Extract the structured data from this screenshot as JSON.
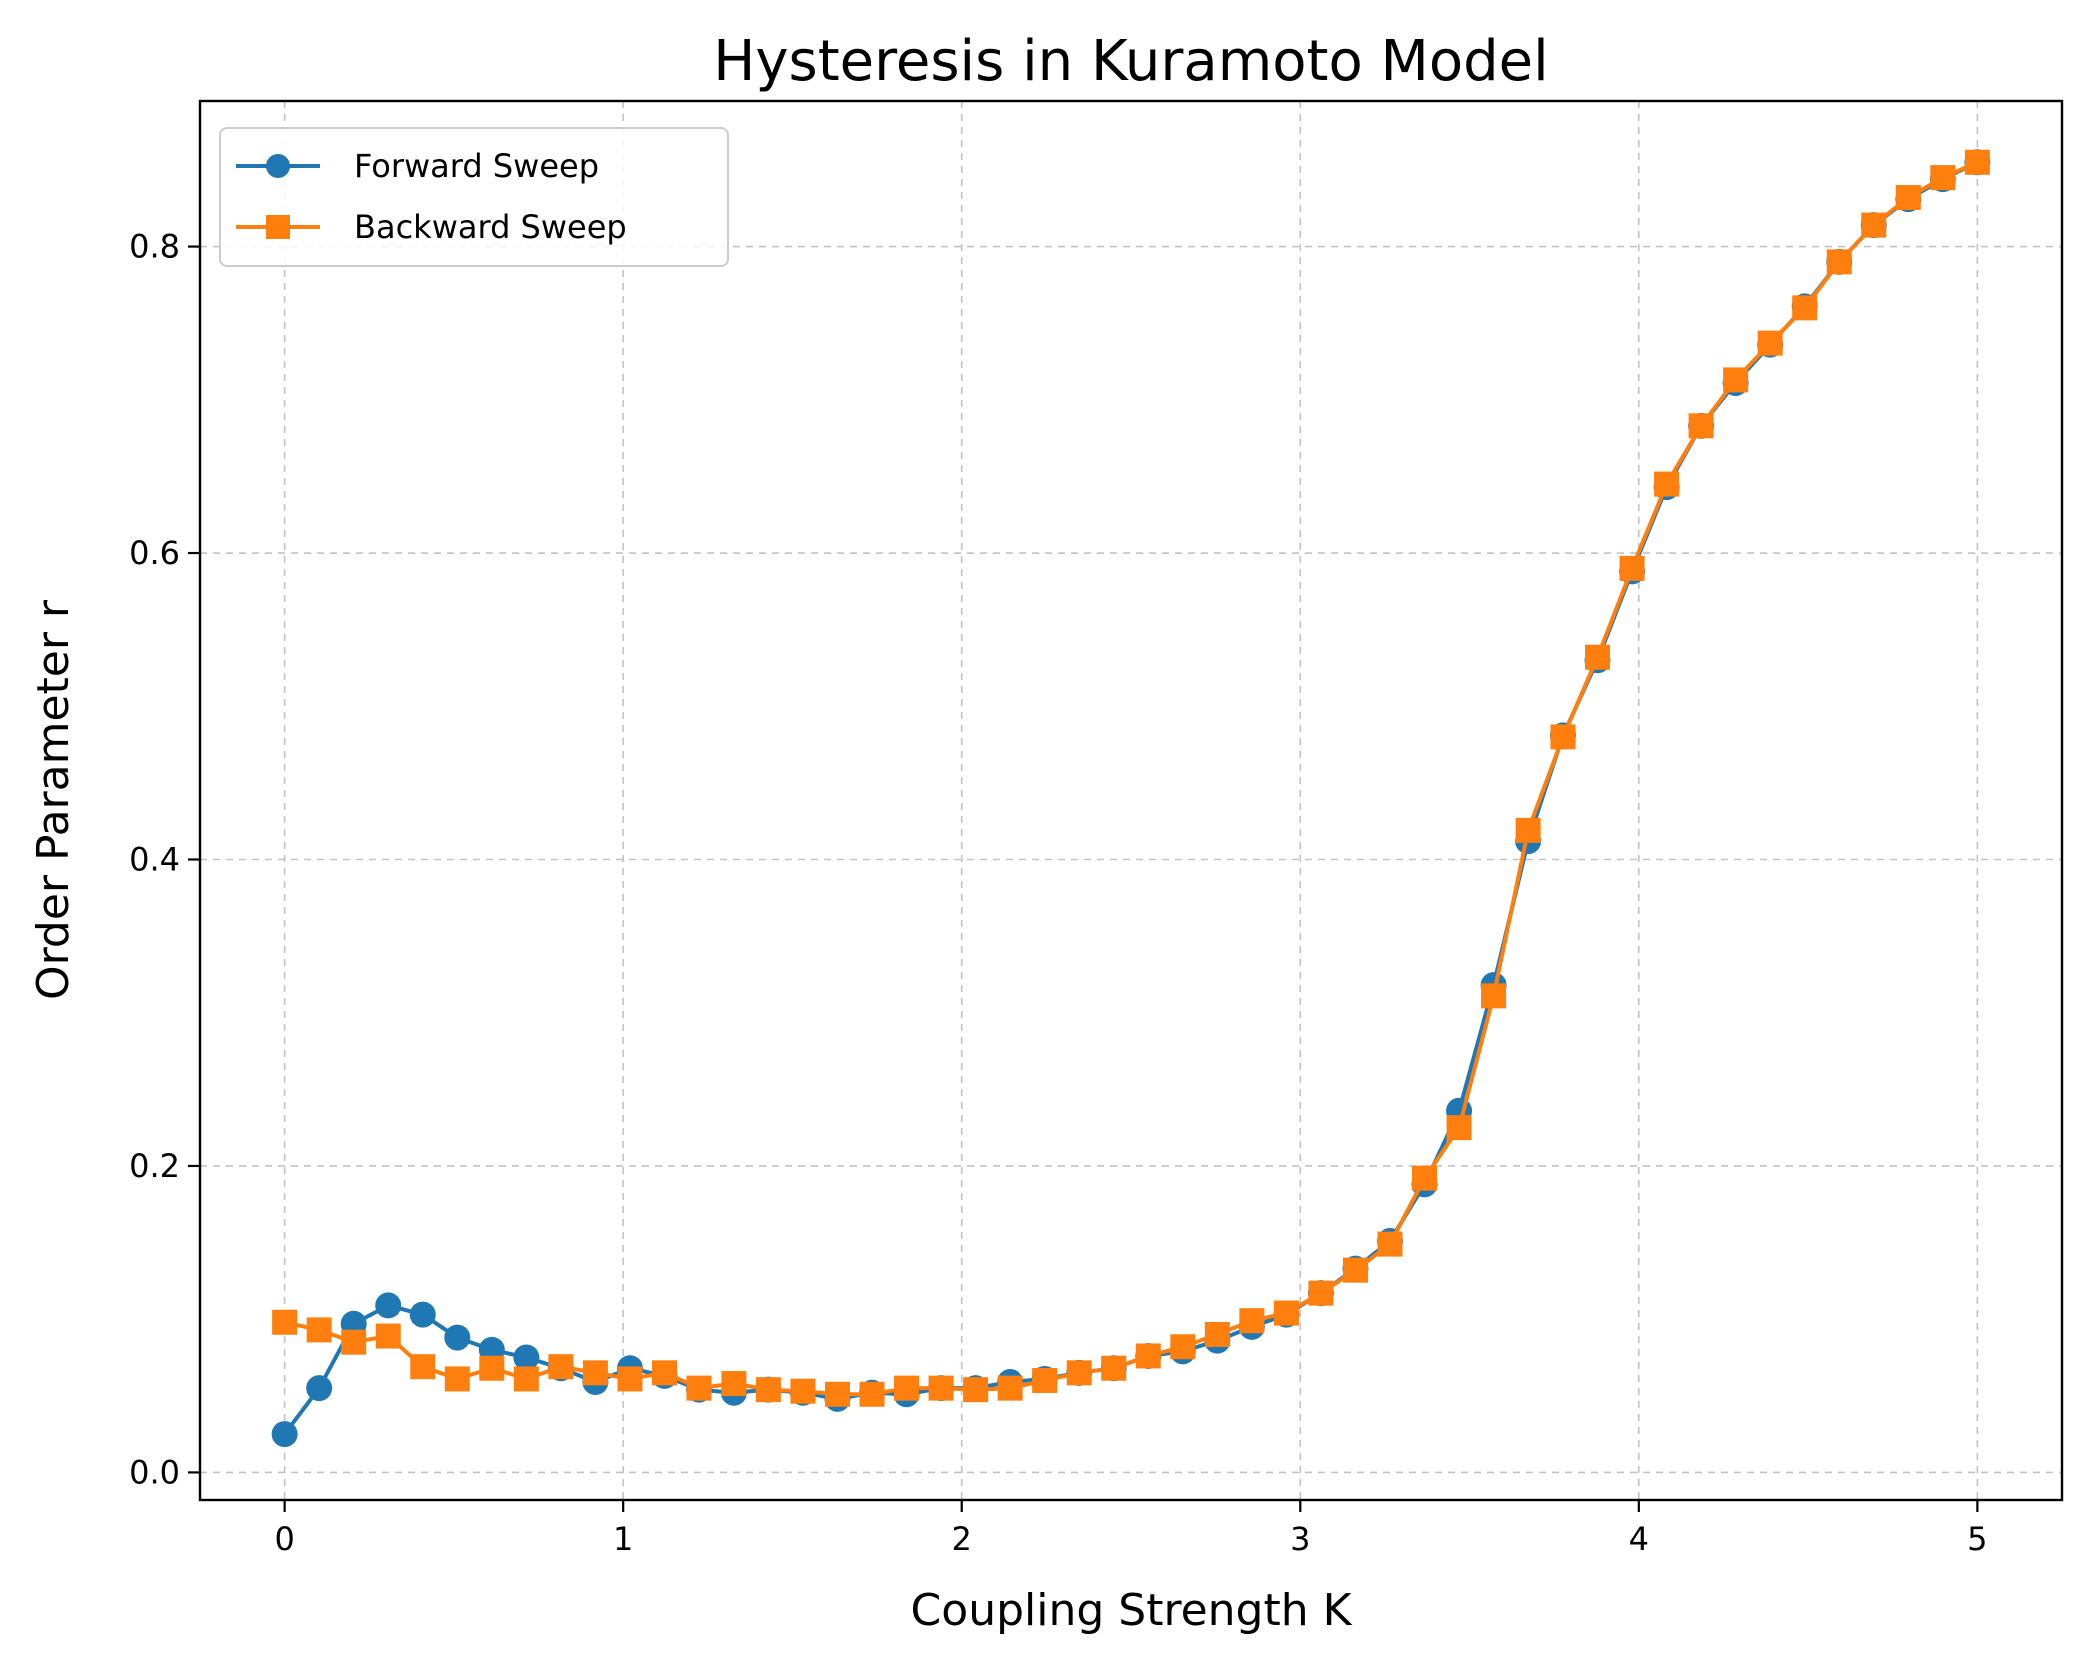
{
  "chart_data": {
    "type": "line",
    "title": "Hysteresis in Kuramoto Model",
    "xlabel": "Coupling Strength K",
    "ylabel": "Order Parameter r",
    "xlim": [
      -0.25,
      5.25
    ],
    "ylim": [
      -0.018,
      0.895
    ],
    "xticks": [
      0,
      1,
      2,
      3,
      4,
      5
    ],
    "yticks": [
      0.0,
      0.2,
      0.4,
      0.6,
      0.8
    ],
    "xtick_labels": [
      "0",
      "1",
      "2",
      "3",
      "4",
      "5"
    ],
    "ytick_labels": [
      "0.0",
      "0.2",
      "0.4",
      "0.6",
      "0.8"
    ],
    "grid": true,
    "legend_position": "upper-left",
    "x": [
      0.0,
      0.102,
      0.204,
      0.306,
      0.408,
      0.51,
      0.612,
      0.714,
      0.816,
      0.918,
      1.02,
      1.122,
      1.224,
      1.327,
      1.429,
      1.531,
      1.633,
      1.735,
      1.837,
      1.939,
      2.041,
      2.143,
      2.245,
      2.347,
      2.449,
      2.551,
      2.653,
      2.755,
      2.857,
      2.959,
      3.061,
      3.163,
      3.265,
      3.367,
      3.469,
      3.571,
      3.673,
      3.776,
      3.878,
      3.98,
      4.082,
      4.184,
      4.286,
      4.388,
      4.49,
      4.592,
      4.694,
      4.796,
      4.898,
      5.0
    ],
    "series": [
      {
        "name": "Forward Sweep",
        "color": "#1f77b4",
        "marker": "circle",
        "values": [
          0.025,
          0.055,
          0.097,
          0.109,
          0.103,
          0.088,
          0.08,
          0.075,
          0.068,
          0.059,
          0.068,
          0.063,
          0.054,
          0.052,
          0.054,
          0.052,
          0.048,
          0.052,
          0.051,
          0.055,
          0.055,
          0.059,
          0.061,
          0.065,
          0.068,
          0.076,
          0.079,
          0.086,
          0.095,
          0.103,
          0.117,
          0.133,
          0.151,
          0.188,
          0.236,
          0.318,
          0.412,
          0.481,
          0.53,
          0.588,
          0.643,
          0.683,
          0.711,
          0.736,
          0.761,
          0.79,
          0.814,
          0.831,
          0.844,
          0.855
        ]
      },
      {
        "name": "Backward Sweep",
        "color": "#ff7f0e",
        "marker": "square",
        "values": [
          0.098,
          0.093,
          0.085,
          0.089,
          0.069,
          0.061,
          0.068,
          0.061,
          0.069,
          0.065,
          0.061,
          0.065,
          0.055,
          0.058,
          0.054,
          0.053,
          0.051,
          0.051,
          0.055,
          0.055,
          0.054,
          0.055,
          0.06,
          0.065,
          0.068,
          0.076,
          0.082,
          0.09,
          0.099,
          0.104,
          0.117,
          0.132,
          0.149,
          0.192,
          0.225,
          0.311,
          0.419,
          0.48,
          0.532,
          0.59,
          0.645,
          0.683,
          0.713,
          0.737,
          0.76,
          0.79,
          0.814,
          0.832,
          0.845,
          0.855
        ]
      }
    ]
  }
}
